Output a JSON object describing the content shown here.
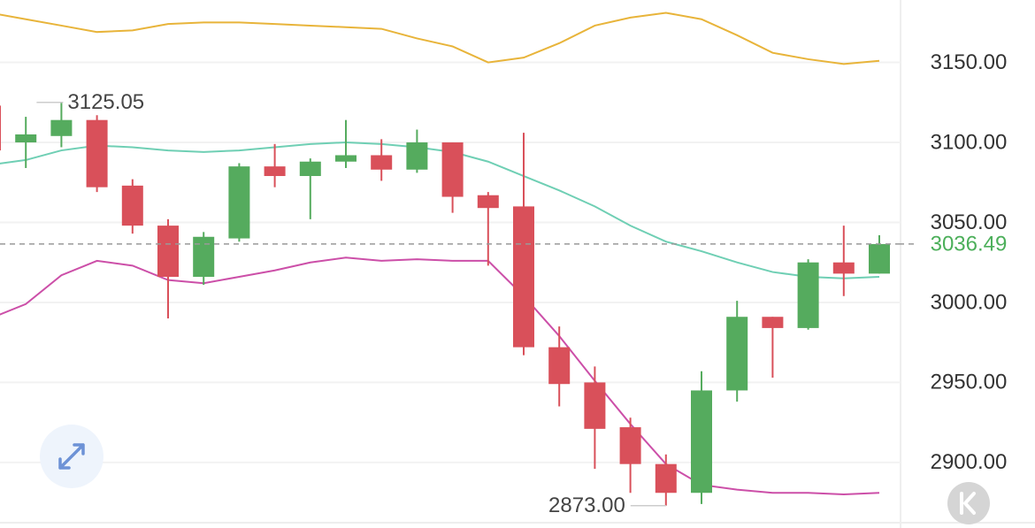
{
  "chart_data": {
    "type": "candlestick",
    "open": [
      3123,
      3100,
      3104,
      3114,
      3073,
      3048,
      3016,
      3040,
      3085,
      3079,
      3088,
      3092,
      3083,
      3100,
      3067,
      3060,
      2972,
      2950,
      2922,
      2899,
      2881,
      2945,
      2991,
      2984,
      3025,
      3018
    ],
    "high": [
      3125,
      3116,
      3125.05,
      3117,
      3077,
      3052,
      3044,
      3087,
      3099,
      3090,
      3114,
      3102,
      3108,
      3100,
      3069,
      3106,
      2985,
      2960,
      2928,
      2905,
      2957,
      3001,
      2991,
      3027,
      3048,
      3042
    ],
    "low": [
      3090,
      3084,
      3097,
      3069,
      3043,
      2990,
      3011,
      3038,
      3072,
      3052,
      3084,
      3076,
      3081,
      3056,
      3023,
      2967,
      2935,
      2896,
      2881,
      2873,
      2874,
      2938,
      2953,
      2983,
      3004,
      3018
    ],
    "close": [
      3095,
      3105,
      3114,
      3072,
      3048,
      3016,
      3041,
      3085,
      3079,
      3088,
      3092,
      3083,
      3100,
      3066,
      3059,
      2972,
      2949,
      2921,
      2899,
      2881,
      2945,
      2991,
      2984,
      3025,
      3018,
      3036.49
    ],
    "up_color": "#55ab5e",
    "down_color": "#d9505a",
    "bands": [
      {
        "color": "#e8b43a",
        "values": [
          3181,
          3177,
          3173,
          3169,
          3170,
          3174,
          3175,
          3175,
          3174,
          3173,
          3172,
          3171,
          3165,
          3160,
          3150,
          3153,
          3162,
          3173,
          3178,
          3181,
          3177,
          3167,
          3156,
          3152,
          3149,
          3151
        ]
      },
      {
        "color": "#6fcfb4",
        "values": [
          3086,
          3089,
          3095,
          3098,
          3097,
          3095,
          3094,
          3095,
          3097,
          3099,
          3100,
          3099,
          3097,
          3094,
          3088,
          3079,
          3070,
          3060,
          3048,
          3038,
          3032,
          3025,
          3019,
          3016,
          3015,
          3016
        ]
      },
      {
        "color": "#cc4fa8",
        "values": [
          2990,
          2999,
          3017,
          3026,
          3023,
          3014,
          3012,
          3016,
          3020,
          3025,
          3028,
          3026,
          3027,
          3026,
          3026,
          3004,
          2979,
          2951,
          2924,
          2899,
          2886,
          2883,
          2881,
          2881,
          2880,
          2881
        ]
      }
    ],
    "last_price": 3036.49,
    "last_price_color": "#4caf5a",
    "annotations": [
      {
        "value": 3125.05
      },
      {
        "value": 2873,
        "label": "2873.00"
      }
    ],
    "ylim": [
      2864,
      3189
    ],
    "yticks": [
      {
        "value": 2900,
        "label": "2900.00"
      },
      {
        "value": 2950,
        "label": "2950.00"
      },
      {
        "value": 3000,
        "label": "3000.00"
      },
      {
        "value": 3050,
        "label": "3050.00"
      },
      {
        "value": 3100,
        "label": "3100.00"
      },
      {
        "value": 3150,
        "label": "3150.00"
      }
    ],
    "grid": true
  }
}
